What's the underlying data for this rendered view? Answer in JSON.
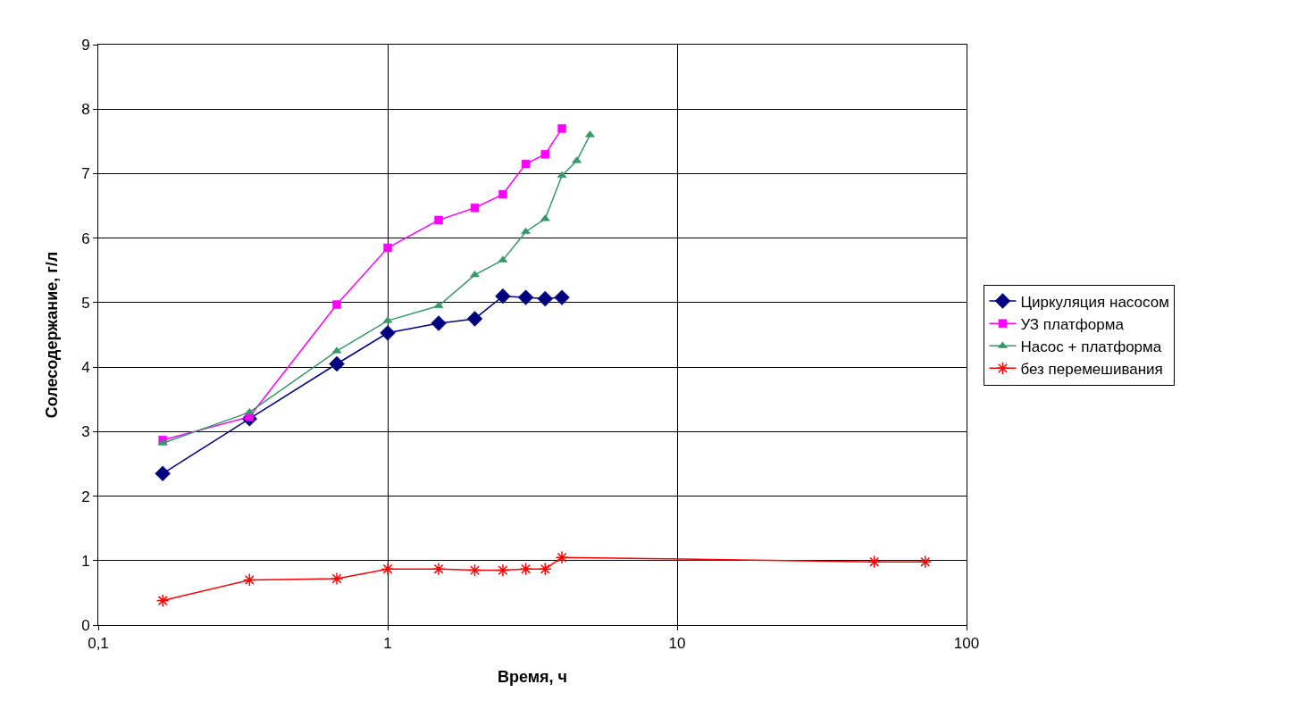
{
  "chart_data": {
    "type": "line",
    "xlabel": "Время, ч",
    "ylabel": "Солесодержание, г/л",
    "log": "x",
    "grid": true,
    "legend": "right",
    "line_style": "solid",
    "xlim": [
      0.1,
      100
    ],
    "xticks": [
      {
        "value": 0.1,
        "label": "0,1"
      },
      1,
      10,
      100
    ],
    "ylim": [
      0,
      9
    ],
    "yticks": [
      0,
      1,
      2,
      3,
      4,
      5,
      6,
      7,
      8,
      9
    ],
    "series": [
      {
        "name": "Циркуляция насосом",
        "color": "#000080",
        "marker": "diamond",
        "x": [
          0.167,
          0.333,
          0.667,
          1,
          1.5,
          2,
          2.5,
          3,
          3.5,
          4
        ],
        "values": [
          2.35,
          3.2,
          4.05,
          4.53,
          4.68,
          4.75,
          5.1,
          5.08,
          5.06,
          5.08
        ]
      },
      {
        "name": "УЗ платформа",
        "color": "#ff00ff",
        "marker": "square",
        "x": [
          0.167,
          0.333,
          0.667,
          1,
          1.5,
          2,
          2.5,
          3,
          3.5,
          4
        ],
        "values": [
          2.87,
          3.23,
          4.97,
          5.85,
          6.28,
          6.47,
          6.68,
          7.15,
          7.3,
          7.7
        ]
      },
      {
        "name": "Насос + платформа",
        "color": "#339966",
        "marker": "triangle",
        "x": [
          0.167,
          0.333,
          0.667,
          1,
          1.5,
          2,
          2.5,
          3,
          3.5,
          4,
          4.5,
          5
        ],
        "values": [
          2.82,
          3.3,
          4.25,
          4.72,
          4.95,
          5.43,
          5.66,
          6.1,
          6.3,
          6.97,
          7.2,
          7.6
        ]
      },
      {
        "name": "без перемешивания",
        "color": "#ff0000",
        "marker": "cross",
        "x": [
          0.167,
          0.333,
          0.667,
          1,
          1.5,
          2,
          2.5,
          3,
          3.5,
          4,
          48,
          72
        ],
        "values": [
          0.38,
          0.7,
          0.72,
          0.87,
          0.87,
          0.85,
          0.85,
          0.87,
          0.87,
          1.05,
          0.98,
          0.98
        ]
      }
    ]
  }
}
